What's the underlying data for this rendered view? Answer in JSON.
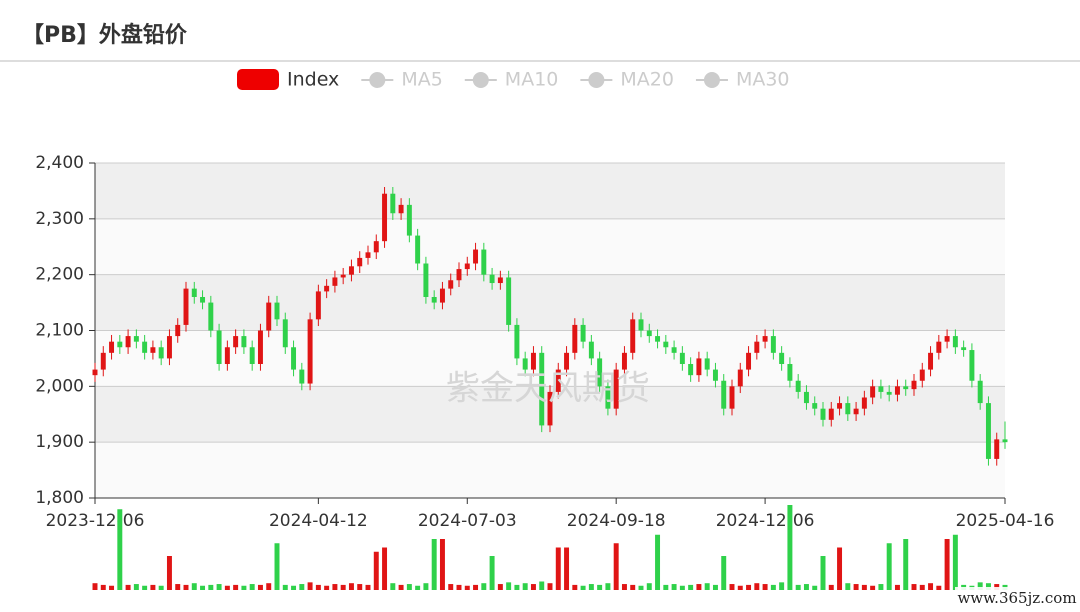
{
  "chart_data": {
    "type": "candlestick",
    "title": "【PB】外盘铅价",
    "watermark": "紫金天风期货",
    "site_watermark": "www.365jz.com",
    "legend_inactive": [
      "MA5",
      "MA10",
      "MA20",
      "MA30"
    ],
    "legend_inactive_color": "#cccccc",
    "ylim": [
      1800,
      2400
    ],
    "yticks": [
      {
        "value": 1800,
        "label": "1,800"
      },
      {
        "value": 1900,
        "label": "1,900"
      },
      {
        "value": 2000,
        "label": "2,000"
      },
      {
        "value": 2100,
        "label": "2,100"
      },
      {
        "value": 2200,
        "label": "2,200"
      },
      {
        "value": 2300,
        "label": "2,300"
      },
      {
        "value": 2400,
        "label": "2,400"
      }
    ],
    "grid": true,
    "split_area_colors": [
      "#efefef",
      "#fafafa"
    ],
    "categories": [
      "2023-12-06",
      null,
      null,
      null,
      null,
      null,
      null,
      null,
      null,
      null,
      null,
      null,
      null,
      null,
      null,
      null,
      null,
      null,
      null,
      null,
      null,
      null,
      null,
      null,
      null,
      null,
      null,
      "2024-04-12",
      null,
      null,
      null,
      null,
      null,
      null,
      null,
      null,
      null,
      null,
      null,
      null,
      null,
      null,
      null,
      null,
      null,
      "2024-07-03",
      null,
      null,
      null,
      null,
      null,
      null,
      null,
      null,
      null,
      null,
      null,
      null,
      null,
      null,
      null,
      null,
      null,
      "2024-09-18",
      null,
      null,
      null,
      null,
      null,
      null,
      null,
      null,
      null,
      null,
      null,
      null,
      null,
      null,
      null,
      null,
      null,
      "2024-12-06",
      null,
      null,
      null,
      null,
      null,
      null,
      null,
      null,
      null,
      null,
      null,
      null,
      null,
      null,
      null,
      null,
      null,
      null,
      null,
      null,
      null,
      null,
      null,
      null,
      null,
      null,
      null,
      null,
      "2025-04-16"
    ],
    "series": [
      {
        "name": "Index",
        "color": "#ee0000",
        "color_up": "#e01515",
        "color_down": "#2fd14a",
        "values": [
          [
            2020,
            2030,
            2008,
            2042
          ],
          [
            2030,
            2060,
            2018,
            2072
          ],
          [
            2060,
            2080,
            2048,
            2092
          ],
          [
            2080,
            2070,
            2058,
            2092
          ],
          [
            2070,
            2090,
            2058,
            2102
          ],
          [
            2090,
            2080,
            2068,
            2102
          ],
          [
            2080,
            2060,
            2048,
            2092
          ],
          [
            2060,
            2070,
            2048,
            2082
          ],
          [
            2070,
            2050,
            2038,
            2082
          ],
          [
            2050,
            2090,
            2038,
            2102
          ],
          [
            2090,
            2110,
            2078,
            2122
          ],
          [
            2110,
            2175,
            2098,
            2187
          ],
          [
            2175,
            2160,
            2148,
            2187
          ],
          [
            2160,
            2150,
            2138,
            2172
          ],
          [
            2150,
            2100,
            2088,
            2162
          ],
          [
            2100,
            2040,
            2028,
            2112
          ],
          [
            2040,
            2070,
            2028,
            2082
          ],
          [
            2070,
            2090,
            2058,
            2102
          ],
          [
            2090,
            2070,
            2058,
            2102
          ],
          [
            2070,
            2040,
            2028,
            2082
          ],
          [
            2040,
            2100,
            2028,
            2112
          ],
          [
            2100,
            2150,
            2088,
            2162
          ],
          [
            2150,
            2120,
            2108,
            2162
          ],
          [
            2120,
            2070,
            2058,
            2132
          ],
          [
            2070,
            2030,
            2018,
            2082
          ],
          [
            2030,
            2005,
            1993,
            2042
          ],
          [
            2005,
            2120,
            1993,
            2132
          ],
          [
            2120,
            2170,
            2108,
            2182
          ],
          [
            2170,
            2180,
            2158,
            2192
          ],
          [
            2180,
            2195,
            2168,
            2207
          ],
          [
            2195,
            2200,
            2183,
            2212
          ],
          [
            2200,
            2215,
            2188,
            2227
          ],
          [
            2215,
            2230,
            2203,
            2242
          ],
          [
            2230,
            2240,
            2218,
            2252
          ],
          [
            2240,
            2260,
            2228,
            2272
          ],
          [
            2260,
            2345,
            2248,
            2357
          ],
          [
            2345,
            2310,
            2298,
            2357
          ],
          [
            2310,
            2325,
            2298,
            2337
          ],
          [
            2325,
            2270,
            2258,
            2337
          ],
          [
            2270,
            2220,
            2208,
            2282
          ],
          [
            2220,
            2160,
            2148,
            2232
          ],
          [
            2160,
            2150,
            2138,
            2172
          ],
          [
            2150,
            2175,
            2138,
            2187
          ],
          [
            2175,
            2190,
            2163,
            2202
          ],
          [
            2190,
            2210,
            2178,
            2222
          ],
          [
            2210,
            2220,
            2198,
            2232
          ],
          [
            2220,
            2245,
            2208,
            2257
          ],
          [
            2245,
            2200,
            2188,
            2257
          ],
          [
            2200,
            2185,
            2173,
            2212
          ],
          [
            2185,
            2195,
            2173,
            2207
          ],
          [
            2195,
            2110,
            2098,
            2207
          ],
          [
            2110,
            2050,
            2038,
            2122
          ],
          [
            2050,
            2030,
            2018,
            2062
          ],
          [
            2030,
            2060,
            2018,
            2072
          ],
          [
            2060,
            1930,
            1918,
            2072
          ],
          [
            1930,
            1990,
            1918,
            2002
          ],
          [
            1990,
            2030,
            1978,
            2042
          ],
          [
            2030,
            2060,
            2018,
            2072
          ],
          [
            2060,
            2110,
            2048,
            2122
          ],
          [
            2110,
            2080,
            2068,
            2122
          ],
          [
            2080,
            2050,
            2038,
            2092
          ],
          [
            2050,
            2000,
            1988,
            2062
          ],
          [
            2000,
            1960,
            1948,
            2012
          ],
          [
            1960,
            2030,
            1948,
            2042
          ],
          [
            2030,
            2060,
            2018,
            2072
          ],
          [
            2060,
            2120,
            2048,
            2132
          ],
          [
            2120,
            2100,
            2088,
            2132
          ],
          [
            2100,
            2090,
            2078,
            2112
          ],
          [
            2090,
            2080,
            2068,
            2102
          ],
          [
            2080,
            2070,
            2058,
            2092
          ],
          [
            2070,
            2060,
            2048,
            2082
          ],
          [
            2060,
            2040,
            2028,
            2072
          ],
          [
            2040,
            2020,
            2008,
            2052
          ],
          [
            2020,
            2050,
            2008,
            2062
          ],
          [
            2050,
            2030,
            2018,
            2062
          ],
          [
            2030,
            2010,
            1998,
            2042
          ],
          [
            2010,
            1960,
            1948,
            2022
          ],
          [
            1960,
            2000,
            1948,
            2012
          ],
          [
            2000,
            2030,
            1988,
            2042
          ],
          [
            2030,
            2060,
            2018,
            2072
          ],
          [
            2060,
            2080,
            2048,
            2092
          ],
          [
            2080,
            2090,
            2068,
            2102
          ],
          [
            2090,
            2060,
            2048,
            2102
          ],
          [
            2060,
            2040,
            2028,
            2072
          ],
          [
            2040,
            2010,
            1998,
            2052
          ],
          [
            2010,
            1990,
            1978,
            2022
          ],
          [
            1990,
            1970,
            1958,
            2002
          ],
          [
            1970,
            1960,
            1948,
            1982
          ],
          [
            1960,
            1940,
            1928,
            1972
          ],
          [
            1940,
            1960,
            1928,
            1972
          ],
          [
            1960,
            1970,
            1948,
            1982
          ],
          [
            1970,
            1950,
            1938,
            1982
          ],
          [
            1950,
            1960,
            1938,
            1972
          ],
          [
            1960,
            1980,
            1948,
            1992
          ],
          [
            1980,
            2000,
            1968,
            2012
          ],
          [
            2000,
            1990,
            1978,
            2012
          ],
          [
            1990,
            1985,
            1973,
            2002
          ],
          [
            1985,
            2000,
            1973,
            2012
          ],
          [
            2000,
            1995,
            1983,
            2012
          ],
          [
            1995,
            2010,
            1983,
            2022
          ],
          [
            2010,
            2030,
            1998,
            2042
          ],
          [
            2030,
            2060,
            2018,
            2072
          ],
          [
            2060,
            2080,
            2048,
            2092
          ],
          [
            2080,
            2090,
            2068,
            2102
          ],
          [
            2090,
            2070,
            2058,
            2102
          ],
          [
            2070,
            2065,
            2053,
            2082
          ],
          [
            2065,
            2010,
            1998,
            2077
          ],
          [
            2010,
            1970,
            1958,
            2022
          ],
          [
            1970,
            1870,
            1858,
            1982
          ],
          [
            1870,
            1905,
            1858,
            1917
          ],
          [
            1905,
            1900,
            1888,
            1937
          ]
        ]
      }
    ],
    "volume": {
      "values": [
        8,
        6,
        5,
        95,
        6,
        7,
        5,
        6,
        5,
        40,
        7,
        6,
        8,
        5,
        6,
        7,
        5,
        6,
        5,
        7,
        6,
        8,
        55,
        6,
        5,
        7,
        9,
        6,
        5,
        7,
        6,
        8,
        7,
        6,
        45,
        50,
        8,
        6,
        7,
        5,
        8,
        60,
        60,
        7,
        6,
        5,
        6,
        8,
        40,
        7,
        9,
        6,
        8,
        7,
        10,
        8,
        50,
        50,
        6,
        5,
        7,
        6,
        8,
        55,
        7,
        6,
        5,
        8,
        65,
        6,
        7,
        5,
        6,
        7,
        8,
        6,
        40,
        7,
        5,
        6,
        8,
        7,
        6,
        9,
        100,
        6,
        7,
        5,
        40,
        6,
        50,
        8,
        7,
        6,
        5,
        7,
        55,
        6,
        60,
        7,
        6,
        8,
        5,
        60,
        65,
        6,
        5,
        9,
        8,
        7,
        6
      ]
    }
  }
}
